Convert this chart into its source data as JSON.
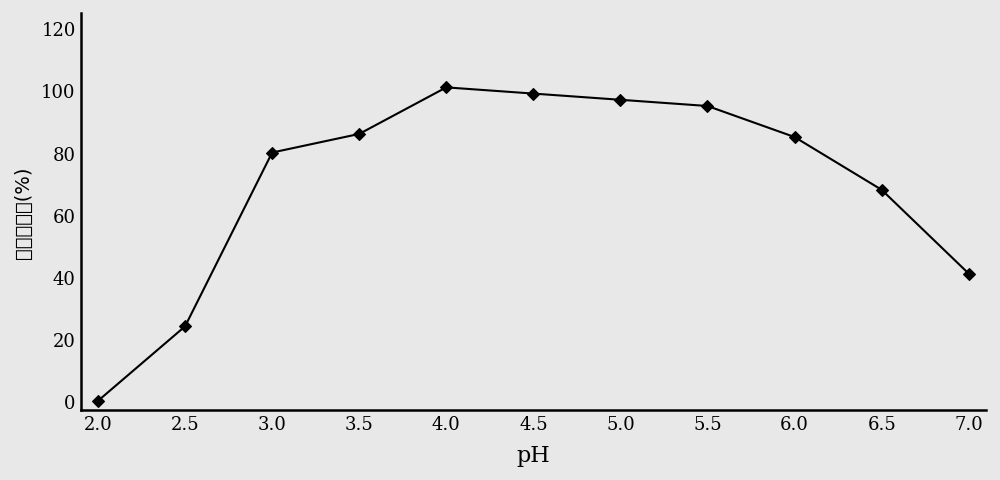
{
  "x": [
    2.0,
    2.5,
    3.0,
    3.5,
    4.0,
    4.5,
    5.0,
    5.5,
    6.0,
    6.5,
    7.0
  ],
  "y": [
    0,
    24,
    80,
    86,
    101,
    99,
    97,
    95,
    85,
    68,
    41
  ],
  "xlabel": "pH",
  "ylabel": "相对酶活力(%)",
  "xlim": [
    1.9,
    7.1
  ],
  "ylim": [
    -3,
    125
  ],
  "xticks": [
    2.0,
    2.5,
    3.0,
    3.5,
    4.0,
    4.5,
    5.0,
    5.5,
    6.0,
    6.5,
    7.0
  ],
  "yticks": [
    0,
    20,
    40,
    60,
    80,
    100,
    120
  ],
  "line_color": "#000000",
  "marker": "D",
  "marker_size": 6,
  "marker_facecolor": "#000000",
  "linewidth": 1.5,
  "background_color": "#e8e8e8",
  "plot_bg_color": "#e8e8e8",
  "xlabel_fontsize": 16,
  "ylabel_fontsize": 14,
  "tick_fontsize": 13,
  "spine_linewidth": 1.8
}
